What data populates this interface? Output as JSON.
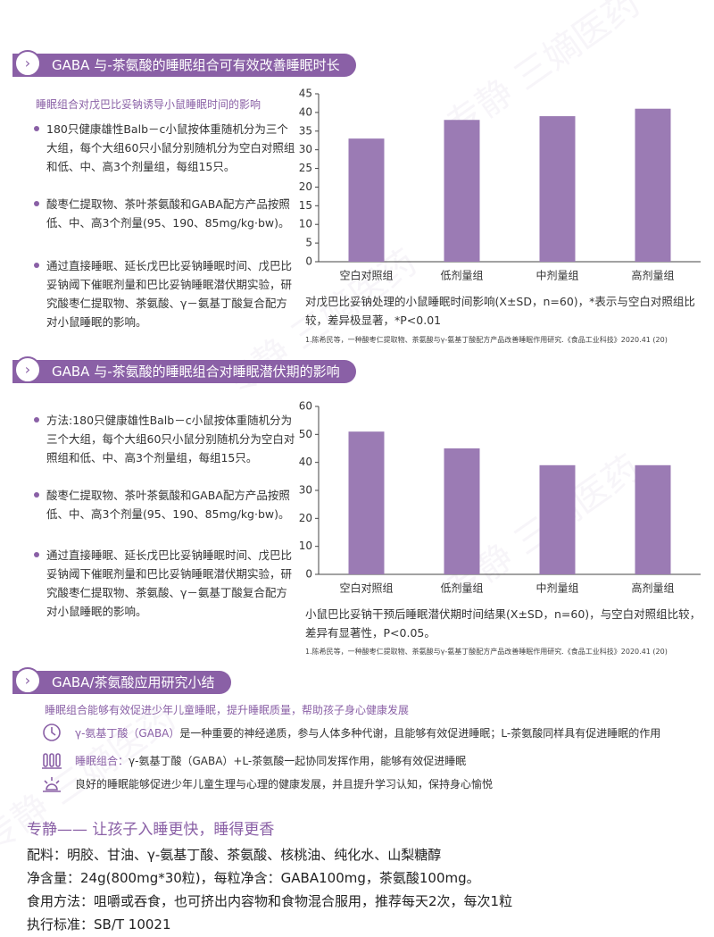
{
  "watermark": "专静 三嫡医药",
  "sections": [
    {
      "header": "GABA 与-茶氨酸的睡眠组合可有效改善睡眠时长",
      "subtitle": "睡眠组合对戊巴比妥钠诱导小鼠睡眠时间的影响",
      "bullets": [
        "180只健康雄性Balb－c小鼠按体重随机分为三个大组，每个大组60只小鼠分别随机分为空白对照组和低、中、高3个剂量组，每组15只。",
        "酸枣仁提取物、茶叶茶氨酸和GABA配方产品按照低、中、高3个剂量(95、190、85mg/kg·bw)。",
        "通过直接睡眠、延长戊巴比妥钠睡眠时间、戊巴比妥钠阈下催眠剂量和巴比妥钠睡眠潜伏期实验，研究酸枣仁提取物、茶氨酸、γ－氨基丁酸复合配方对小鼠睡眠的影响。"
      ],
      "chart": {
        "type": "bar",
        "categories": [
          "空白对照组",
          "低剂量组",
          "中剂量组",
          "高剂量组"
        ],
        "values": [
          33,
          38,
          39,
          41
        ],
        "color": "#9b7bb4",
        "ylim": [
          0,
          45
        ],
        "yticks": [
          0,
          5,
          10,
          15,
          20,
          25,
          30,
          35,
          40,
          45
        ]
      },
      "caption": "对戊巴比妥钠处理的小鼠睡眠时间影响(X±SD，n=60)，*表示与空白对照组比较，差异极显著，*P<0.01",
      "reference": "1.陈希民等，一种酸枣仁提取物、茶氨酸与γ-氨基丁酸配方产品改善睡眠作用研究.《食品工业科技》2020.41 (20)"
    },
    {
      "header": "GABA 与-茶氨酸的睡眠组合对睡眠潜伏期的影响",
      "bullets": [
        "方法:180只健康雄性Balb－c小鼠按体重随机分为三个大组，每个大组60只小鼠分别随机分为空白对照组和低、中、高3个剂量组，每组15只。",
        "酸枣仁提取物、茶叶茶氨酸和GABA配方产品按照低、中、高3个剂量(95、190、85mg/kg·bw)。",
        "通过直接睡眠、延长戊巴比妥钠睡眠时间、戊巴比妥钠阈下催眠剂量和巴比妥钠睡眠潜伏期实验，研究酸枣仁提取物、茶氨酸、γ－氨基丁酸复合配方对小鼠睡眠的影响。"
      ],
      "chart": {
        "type": "bar",
        "categories": [
          "空白对照组",
          "低剂量组",
          "中剂量组",
          "高剂量组"
        ],
        "values": [
          51,
          45,
          39,
          39
        ],
        "color": "#9b7bb4",
        "ylim": [
          0,
          60
        ],
        "yticks": [
          0,
          10,
          20,
          30,
          40,
          50,
          60
        ]
      },
      "caption": "小鼠巴比妥钠干预后睡眠潜伏期时间结果(X±SD，n=60)，与空白对照组比较，差异有显著性，P<0.05。",
      "reference": "1.陈希民等，一种酸枣仁提取物、茶氨酸与γ-氨基丁酸配方产品改善睡眠作用研究.《食品工业科技》2020.41 (20)"
    }
  ],
  "summary": {
    "header": "GABA/茶氨酸应用研究小结",
    "subtitle": "睡眠组合能够有效促进少年儿童睡眠，提升睡眠质量，帮助孩子身心健康发展",
    "rows": [
      {
        "label": "γ-氨基丁酸（GABA）",
        "text": "是一种重要的神经递质，参与人体多种代谢，且能够有效促进睡眠；L-茶氨酸同样具有促进睡眠的作用"
      },
      {
        "label": "睡眠组合：",
        "text": "γ-氨基丁酸（GABA）+L-茶氨酸一起协同发挥作用，能够有效促进睡眠"
      },
      {
        "text": "良好的睡眠能够促进少年儿童生理与心理的健康发展，并且提升学习认知，保持身心愉悦"
      }
    ]
  },
  "product": {
    "tagline": "专静—— 让孩子入睡更快，睡得更香",
    "lines": [
      "配料：明胶、甘油、γ-氨基丁酸、茶氨酸、核桃油、纯化水、山梨糖醇",
      "净含量：24g(800mg*30粒)，每粒净含：GABA100mg，茶氨酸100mg。",
      "食用方法：咀嚼或吞食，也可挤出内容物和食物混合服用，推荐每天2次，每次1粒",
      "执行标准：SB/T 10021"
    ]
  }
}
